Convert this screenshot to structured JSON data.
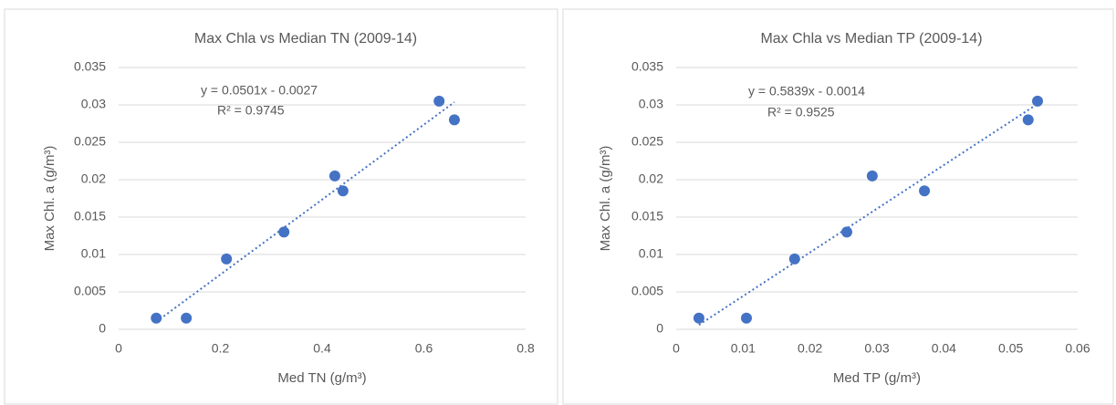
{
  "chart_data": [
    {
      "type": "scatter",
      "title": "Max Chla vs Median TN (2009-14)",
      "x_label": "Med TN (g/m³)",
      "y_label": "Max Chl. a (g/m³)",
      "x": [
        0.074,
        0.133,
        0.212,
        0.325,
        0.425,
        0.441,
        0.63,
        0.66
      ],
      "values": [
        0.0015,
        0.0015,
        0.0094,
        0.013,
        0.0205,
        0.0185,
        0.0305,
        0.028
      ],
      "color": "#4472c4",
      "xlim": [
        0,
        0.8
      ],
      "xticks": [
        0,
        0.2,
        0.4,
        0.6,
        0.8
      ],
      "ylim": [
        0,
        0.035
      ],
      "yticks": [
        0,
        0.005,
        0.01,
        0.015,
        0.02,
        0.025,
        0.03,
        0.035
      ],
      "grid": true,
      "trendline": {
        "slope": 0.0501,
        "intercept": -0.0027,
        "equation": "y = 0.0501x - 0.0027",
        "r2": {
          "value": 0.9745,
          "label": "R² = 0.9745"
        }
      }
    },
    {
      "type": "scatter",
      "title": "Max Chla vs Median TP (2009-14)",
      "x_label": "Med TP (g/m³)",
      "y_label": "Max Chl. a (g/m³)",
      "x": [
        0.0034,
        0.0105,
        0.0177,
        0.0255,
        0.0293,
        0.0371,
        0.0526,
        0.054
      ],
      "values": [
        0.0015,
        0.0015,
        0.0094,
        0.013,
        0.0205,
        0.0185,
        0.028,
        0.0305
      ],
      "color": "#4472c4",
      "xlim": [
        0,
        0.06
      ],
      "xticks": [
        0,
        0.01,
        0.02,
        0.03,
        0.04,
        0.05,
        0.06
      ],
      "ylim": [
        0,
        0.035
      ],
      "yticks": [
        0,
        0.005,
        0.01,
        0.015,
        0.02,
        0.025,
        0.03,
        0.035
      ],
      "grid": true,
      "trendline": {
        "slope": 0.5839,
        "intercept": -0.0014,
        "equation": "y = 0.5839x - 0.0014",
        "r2": {
          "value": 0.9525,
          "label": "R² = 0.9525"
        }
      }
    }
  ]
}
